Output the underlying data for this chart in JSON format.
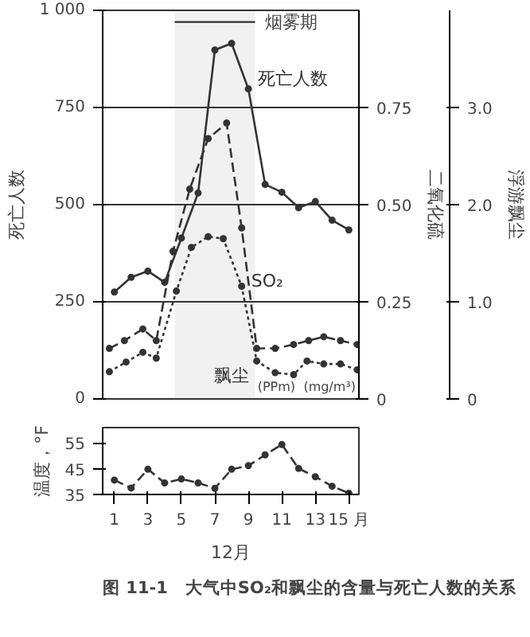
{
  "chart_data": [
    {
      "type": "line",
      "ylabel": "死亡人数",
      "y2label": "二氧化硫",
      "y3label": "浮游飘尘",
      "xlim": [
        0.3,
        15.6
      ],
      "ylim": [
        0,
        1000
      ],
      "yticks": [
        0,
        250,
        500,
        750,
        {
          "value": 1000,
          "label": "1 000"
        }
      ],
      "y2lim": [
        0,
        1
      ],
      "y2ticks": [
        0,
        0.25,
        {
          "value": 0.5,
          "label": "0.50"
        },
        0.75
      ],
      "y3lim": [
        0,
        4
      ],
      "y3ticks": [
        0,
        {
          "value": 1,
          "label": "1.0"
        },
        {
          "value": 2,
          "label": "2.0"
        },
        {
          "value": 3,
          "label": "3.0"
        }
      ],
      "tick_labels": "y",
      "grid": "y",
      "legend": false,
      "marker": "circle",
      "bands": [
        {
          "axis": "x",
          "from": 4.6,
          "to": 9.4,
          "label": "烟雾期",
          "color": "#333333"
        }
      ],
      "annotations": [
        "(PPm)",
        "(mg/m³)"
      ],
      "series": [
        {
          "name": "死亡人数",
          "color": "#333333",
          "line_style": "solid",
          "x": [
            1,
            2,
            3,
            4,
            5,
            6,
            7,
            8,
            9,
            10,
            11,
            12,
            13,
            14,
            15
          ],
          "values": [
            275,
            313,
            329,
            300,
            414,
            530,
            898,
            915,
            798,
            552,
            532,
            492,
            508,
            460,
            435
          ]
        },
        {
          "name": "SO₂",
          "color": "#333333",
          "line_style": "dashed",
          "axis": "y2",
          "x": [
            0.7,
            1.6,
            2.7,
            3.5,
            4.5,
            5.5,
            6.6,
            7.7,
            8.6,
            9.5,
            10.6,
            11.7,
            12.6,
            13.5,
            14.5,
            15.5
          ],
          "values": [
            0.13,
            0.15,
            0.18,
            0.15,
            0.38,
            0.54,
            0.67,
            0.71,
            0.44,
            0.13,
            0.13,
            0.14,
            0.15,
            0.16,
            0.15,
            0.14
          ]
        },
        {
          "name": "飘尘",
          "color": "#333333",
          "line_style": "dotted",
          "axis": "y3",
          "x": [
            0.7,
            1.7,
            2.7,
            3.5,
            4.7,
            5.6,
            6.6,
            7.5,
            8.6,
            9.5,
            10.6,
            11.7,
            12.5,
            13.5,
            14.5,
            15.5
          ],
          "values": [
            0.28,
            0.38,
            0.48,
            0.42,
            1.11,
            1.56,
            1.67,
            1.65,
            1.16,
            0.39,
            0.27,
            0.25,
            0.39,
            0.36,
            0.36,
            0.3
          ]
        }
      ]
    },
    {
      "type": "line",
      "ylabel": "温度，°F",
      "xlabel": "12月",
      "xlim": [
        0.3,
        15.6
      ],
      "xticks": [
        1,
        3,
        5,
        7,
        9,
        11,
        13,
        {
          "value": 15,
          "label": "15 月"
        }
      ],
      "ylim": [
        35,
        61
      ],
      "yticks": [
        35,
        45,
        55
      ],
      "grid": false,
      "legend": false,
      "marker": "circle",
      "line_style": "dashed",
      "annotations": [
        "图 11-1　大气中SO₂和飘尘的含量与死亡人数的关系"
      ],
      "series": [
        {
          "color": "#333333",
          "x": [
            1,
            2,
            3,
            4,
            5,
            6,
            7,
            8,
            9,
            10,
            11,
            12,
            13,
            14,
            15
          ],
          "values": [
            40.6,
            37.5,
            44.8,
            39.5,
            41,
            39.5,
            37.4,
            44.8,
            46.2,
            50.4,
            54.4,
            45.1,
            41.9,
            38.2,
            35.5
          ]
        }
      ]
    }
  ]
}
